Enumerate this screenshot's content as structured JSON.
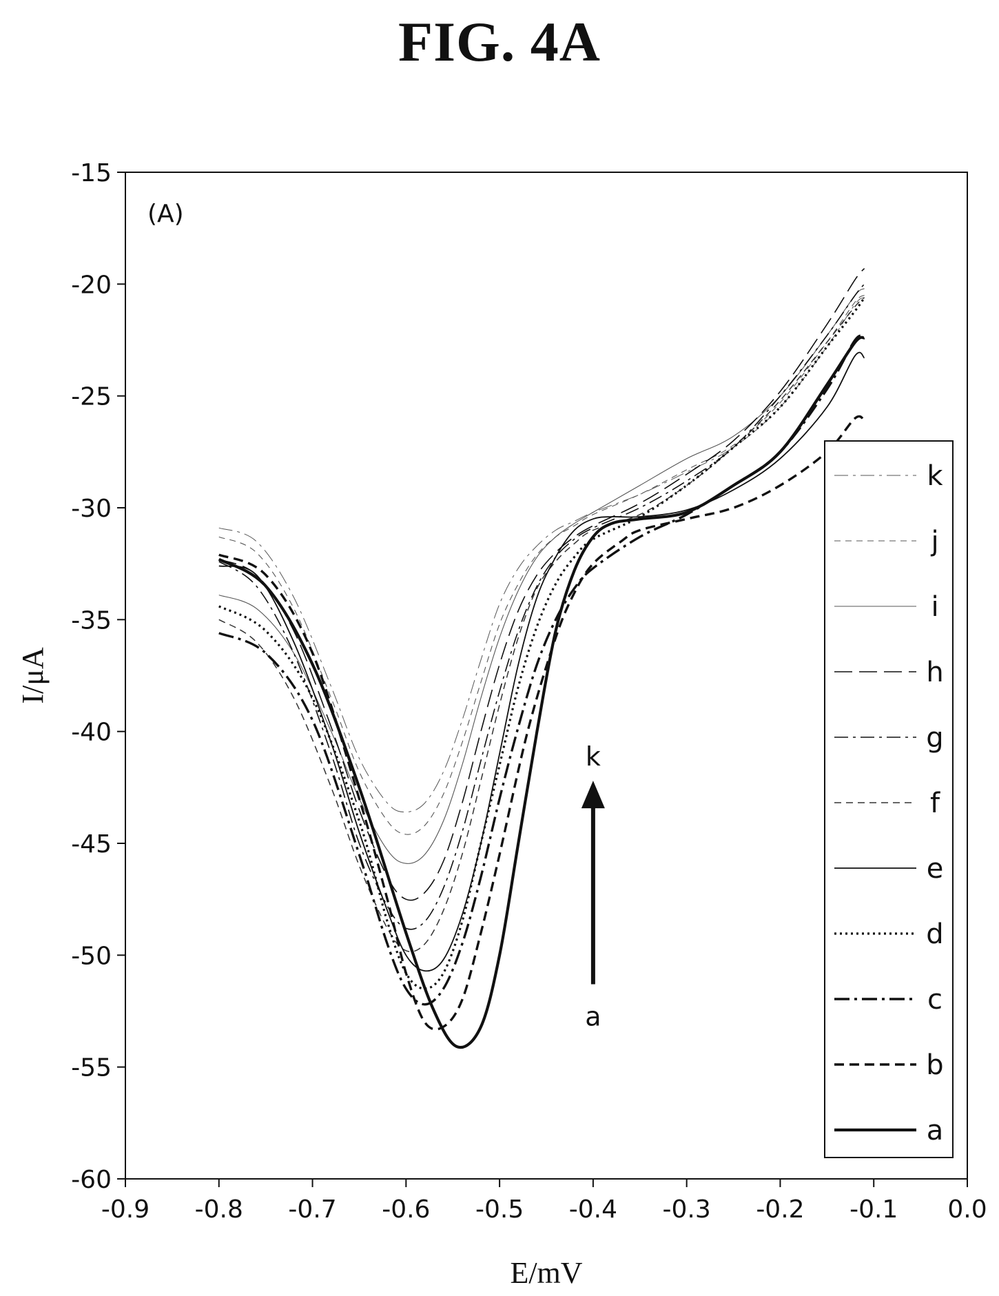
{
  "figure": {
    "title": "FIG. 4A"
  },
  "chart_data": {
    "type": "line",
    "panel_label": "(A)",
    "xlabel": "E/mV",
    "ylabel": "I/μA",
    "xlim": [
      -0.9,
      0.0
    ],
    "ylim": [
      -60,
      -15
    ],
    "xticks": [
      "-0.9",
      "-0.8",
      "-0.7",
      "-0.6",
      "-0.5",
      "-0.4",
      "-0.3",
      "-0.2",
      "-0.1",
      "0.0"
    ],
    "yticks": [
      "-15",
      "-20",
      "-25",
      "-30",
      "-35",
      "-40",
      "-45",
      "-50",
      "-55",
      "-60"
    ],
    "grid": false,
    "legend_position": "right",
    "annotation": {
      "top_label": "k",
      "bottom_label": "a",
      "arrow_x": -0.4,
      "arrow_y_start": -51.3,
      "arrow_y_end": -42.2
    },
    "series": [
      {
        "name": "a",
        "style": "solid",
        "width": 4.2,
        "color": "#111111",
        "x": [
          -0.8,
          -0.75,
          -0.7,
          -0.65,
          -0.6,
          -0.57,
          -0.545,
          -0.52,
          -0.5,
          -0.48,
          -0.46,
          -0.44,
          -0.42,
          -0.4,
          -0.38,
          -0.35,
          -0.3,
          -0.25,
          -0.2,
          -0.15,
          -0.12,
          -0.11
        ],
        "y": [
          -32.3,
          -33.5,
          -37.0,
          -42.5,
          -49.0,
          -52.5,
          -54.1,
          -53.2,
          -50.0,
          -45.0,
          -40.0,
          -35.5,
          -32.8,
          -31.3,
          -30.7,
          -30.5,
          -30.2,
          -29.0,
          -27.5,
          -24.5,
          -22.6,
          -22.4
        ]
      },
      {
        "name": "b",
        "style": "dash",
        "width": 3.4,
        "color": "#111111",
        "x": [
          -0.8,
          -0.75,
          -0.7,
          -0.65,
          -0.62,
          -0.6,
          -0.58,
          -0.56,
          -0.54,
          -0.52,
          -0.5,
          -0.47,
          -0.44,
          -0.42,
          -0.4,
          -0.37,
          -0.35,
          -0.3,
          -0.25,
          -0.2,
          -0.15,
          -0.12,
          -0.11
        ],
        "y": [
          -32.1,
          -33.0,
          -36.5,
          -43.0,
          -47.5,
          -50.8,
          -53.0,
          -53.2,
          -52.0,
          -49.0,
          -45.5,
          -40.0,
          -35.8,
          -33.8,
          -32.5,
          -31.5,
          -31.0,
          -30.5,
          -30.0,
          -29.0,
          -27.5,
          -26.0,
          -26.1
        ]
      },
      {
        "name": "c",
        "style": "dashdot",
        "width": 3.4,
        "color": "#111111",
        "x": [
          -0.8,
          -0.75,
          -0.7,
          -0.65,
          -0.62,
          -0.6,
          -0.58,
          -0.56,
          -0.54,
          -0.52,
          -0.5,
          -0.48,
          -0.46,
          -0.44,
          -0.42,
          -0.4,
          -0.35,
          -0.3,
          -0.25,
          -0.2,
          -0.15,
          -0.12,
          -0.11
        ],
        "y": [
          -35.6,
          -36.5,
          -39.5,
          -45.5,
          -49.5,
          -51.5,
          -52.2,
          -51.5,
          -49.5,
          -46.5,
          -43.0,
          -39.8,
          -37.0,
          -35.0,
          -33.6,
          -32.7,
          -31.3,
          -30.3,
          -29.0,
          -27.5,
          -24.7,
          -22.5,
          -22.4
        ]
      },
      {
        "name": "d",
        "style": "dot",
        "width": 3.2,
        "color": "#111111",
        "x": [
          -0.8,
          -0.75,
          -0.7,
          -0.65,
          -0.62,
          -0.6,
          -0.58,
          -0.56,
          -0.54,
          -0.52,
          -0.5,
          -0.48,
          -0.46,
          -0.44,
          -0.42,
          -0.4,
          -0.35,
          -0.3,
          -0.25,
          -0.2,
          -0.15,
          -0.12,
          -0.11
        ],
        "y": [
          -34.4,
          -35.5,
          -38.5,
          -44.0,
          -48.5,
          -50.8,
          -51.5,
          -50.8,
          -48.5,
          -45.0,
          -41.5,
          -38.0,
          -35.3,
          -33.4,
          -32.2,
          -31.4,
          -30.4,
          -29.0,
          -27.3,
          -25.5,
          -22.8,
          -21.2,
          -20.6
        ]
      },
      {
        "name": "e",
        "style": "solid",
        "width": 1.8,
        "color": "#111111",
        "x": [
          -0.8,
          -0.76,
          -0.72,
          -0.68,
          -0.65,
          -0.62,
          -0.6,
          -0.58,
          -0.56,
          -0.54,
          -0.52,
          -0.5,
          -0.48,
          -0.46,
          -0.44,
          -0.42,
          -0.4,
          -0.38,
          -0.35,
          -0.3,
          -0.25,
          -0.2,
          -0.15,
          -0.12,
          -0.11
        ],
        "y": [
          -32.6,
          -33.0,
          -36.0,
          -40.5,
          -44.5,
          -48.0,
          -50.0,
          -50.7,
          -50.2,
          -48.2,
          -45.0,
          -41.0,
          -37.0,
          -34.0,
          -32.2,
          -31.0,
          -30.5,
          -30.4,
          -30.4,
          -30.1,
          -29.2,
          -27.8,
          -25.5,
          -23.2,
          -23.3
        ]
      },
      {
        "name": "f",
        "style": "dash-short",
        "width": 1.5,
        "color": "#333333",
        "x": [
          -0.8,
          -0.76,
          -0.72,
          -0.68,
          -0.65,
          -0.62,
          -0.6,
          -0.58,
          -0.56,
          -0.54,
          -0.52,
          -0.5,
          -0.48,
          -0.46,
          -0.44,
          -0.42,
          -0.4,
          -0.35,
          -0.3,
          -0.25,
          -0.2,
          -0.15,
          -0.12,
          -0.11
        ],
        "y": [
          -35.0,
          -36.0,
          -38.5,
          -42.5,
          -46.0,
          -48.8,
          -49.8,
          -49.5,
          -48.0,
          -45.5,
          -42.2,
          -38.8,
          -35.8,
          -33.6,
          -32.4,
          -31.6,
          -31.0,
          -30.3,
          -29.0,
          -27.3,
          -25.2,
          -22.6,
          -21.0,
          -20.6
        ]
      },
      {
        "name": "g",
        "style": "dashdot-thin",
        "width": 1.6,
        "color": "#111111",
        "x": [
          -0.8,
          -0.76,
          -0.72,
          -0.68,
          -0.65,
          -0.62,
          -0.6,
          -0.58,
          -0.56,
          -0.54,
          -0.52,
          -0.5,
          -0.48,
          -0.46,
          -0.44,
          -0.42,
          -0.4,
          -0.35,
          -0.3,
          -0.25,
          -0.2,
          -0.15,
          -0.12,
          -0.11
        ],
        "y": [
          -32.4,
          -33.5,
          -36.5,
          -41.0,
          -45.0,
          -47.8,
          -48.8,
          -48.5,
          -47.0,
          -44.5,
          -41.3,
          -38.2,
          -35.5,
          -33.5,
          -32.2,
          -31.4,
          -30.9,
          -30.0,
          -28.8,
          -27.3,
          -25.0,
          -22.3,
          -20.5,
          -20.0
        ]
      },
      {
        "name": "h",
        "style": "dash-long",
        "width": 1.6,
        "color": "#111111",
        "x": [
          -0.8,
          -0.76,
          -0.72,
          -0.68,
          -0.65,
          -0.62,
          -0.6,
          -0.58,
          -0.56,
          -0.54,
          -0.52,
          -0.5,
          -0.48,
          -0.46,
          -0.44,
          -0.42,
          -0.4,
          -0.35,
          -0.3,
          -0.25,
          -0.2,
          -0.15,
          -0.12,
          -0.11
        ],
        "y": [
          -32.3,
          -33.0,
          -35.5,
          -39.8,
          -43.5,
          -46.5,
          -47.5,
          -47.2,
          -45.8,
          -43.2,
          -40.0,
          -37.0,
          -34.6,
          -33.0,
          -32.0,
          -31.3,
          -30.8,
          -29.8,
          -28.5,
          -27.0,
          -24.8,
          -21.8,
          -19.8,
          -19.3
        ]
      },
      {
        "name": "i",
        "style": "solid-thin",
        "width": 1.1,
        "color": "#555555",
        "x": [
          -0.8,
          -0.76,
          -0.72,
          -0.68,
          -0.65,
          -0.62,
          -0.6,
          -0.58,
          -0.56,
          -0.54,
          -0.52,
          -0.5,
          -0.48,
          -0.46,
          -0.44,
          -0.42,
          -0.4,
          -0.35,
          -0.3,
          -0.25,
          -0.2,
          -0.15,
          -0.12,
          -0.11
        ],
        "y": [
          -33.9,
          -34.5,
          -36.5,
          -40.0,
          -43.0,
          -45.3,
          -45.9,
          -45.5,
          -44.0,
          -41.5,
          -38.5,
          -35.8,
          -33.7,
          -32.2,
          -31.3,
          -30.7,
          -30.2,
          -29.0,
          -27.8,
          -26.8,
          -25.0,
          -22.3,
          -20.5,
          -20.2
        ]
      },
      {
        "name": "j",
        "style": "dash-short-thin",
        "width": 1.1,
        "color": "#555555",
        "x": [
          -0.8,
          -0.76,
          -0.72,
          -0.68,
          -0.65,
          -0.62,
          -0.6,
          -0.58,
          -0.56,
          -0.54,
          -0.52,
          -0.5,
          -0.48,
          -0.46,
          -0.44,
          -0.42,
          -0.4,
          -0.35,
          -0.3,
          -0.25,
          -0.2,
          -0.15,
          -0.12,
          -0.11
        ],
        "y": [
          -31.3,
          -32.0,
          -34.5,
          -38.5,
          -41.8,
          -44.0,
          -44.6,
          -44.2,
          -42.8,
          -40.5,
          -37.8,
          -35.2,
          -33.4,
          -32.1,
          -31.3,
          -30.8,
          -30.3,
          -29.4,
          -28.3,
          -27.2,
          -25.3,
          -22.6,
          -20.8,
          -20.5
        ]
      },
      {
        "name": "k",
        "style": "dashdot-thin",
        "width": 1.0,
        "color": "#555555",
        "x": [
          -0.8,
          -0.76,
          -0.72,
          -0.68,
          -0.65,
          -0.62,
          -0.6,
          -0.58,
          -0.56,
          -0.54,
          -0.52,
          -0.5,
          -0.48,
          -0.46,
          -0.44,
          -0.42,
          -0.4,
          -0.35,
          -0.3,
          -0.25,
          -0.2,
          -0.15,
          -0.12,
          -0.11
        ],
        "y": [
          -30.9,
          -31.5,
          -34.0,
          -38.0,
          -41.2,
          -43.2,
          -43.6,
          -43.2,
          -41.8,
          -39.5,
          -36.8,
          -34.3,
          -32.7,
          -31.7,
          -31.0,
          -30.6,
          -30.2,
          -29.4,
          -28.4,
          -27.3,
          -25.5,
          -22.8,
          -20.9,
          -20.6
        ]
      }
    ]
  }
}
